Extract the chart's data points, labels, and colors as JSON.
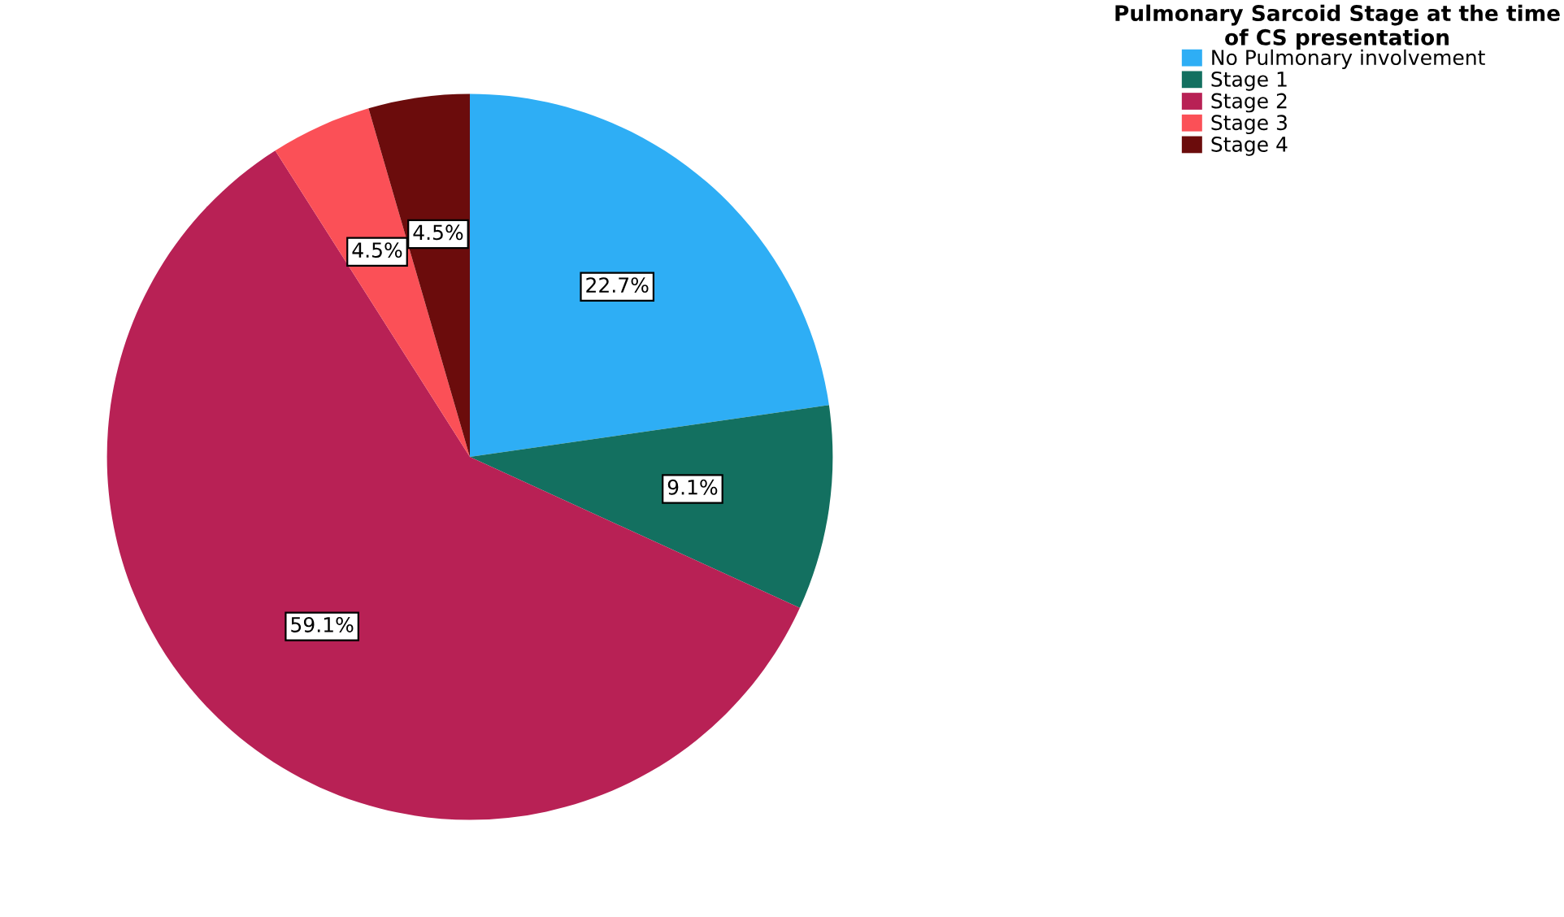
{
  "chart_data": {
    "type": "pie",
    "legend_title": "Pulmonary Sarcoid Stage at the time of CS presentation",
    "categories": [
      "No Pulmonary involvement",
      "Stage 1",
      "Stage 2",
      "Stage 3",
      "Stage 4"
    ],
    "values": [
      22.7,
      9.1,
      59.1,
      4.5,
      4.5
    ],
    "value_labels": [
      "22.7%",
      "9.1%",
      "59.1%",
      "4.5%",
      "4.5%"
    ],
    "colors": [
      "#2eaef5",
      "#137060",
      "#b82155",
      "#fb5057",
      "#6b0c0c"
    ],
    "legend": "top right"
  }
}
